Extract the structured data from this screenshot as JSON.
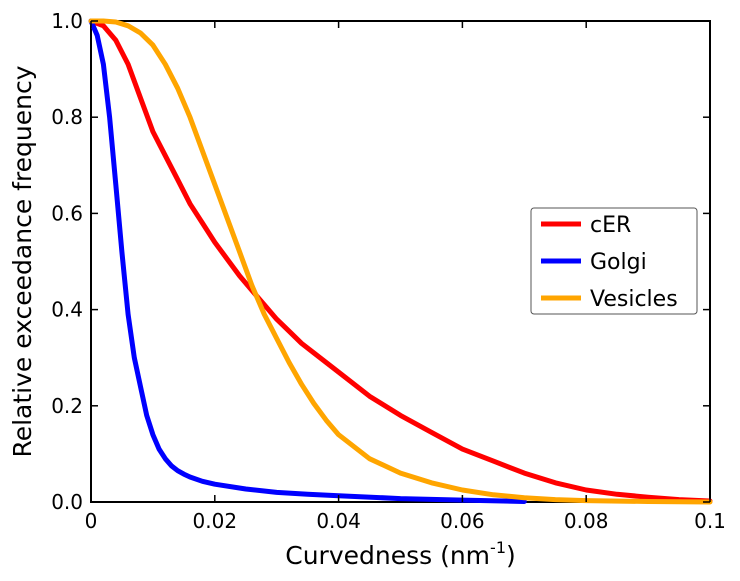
{
  "chart_data": {
    "type": "line",
    "title": "",
    "xlabel": "Curvedness (nm",
    "xlabel_sup": "-1",
    "xlabel_end": ")",
    "ylabel": "Relative exceedance frequency",
    "xlim": [
      0,
      0.1
    ],
    "ylim": [
      0,
      1.0
    ],
    "xticks": [
      "0",
      "0.02",
      "0.04",
      "0.06",
      "0.08",
      "0.1"
    ],
    "xtick_values": [
      0,
      0.02,
      0.04,
      0.06,
      0.08,
      0.1
    ],
    "yticks": [
      "0.0",
      "0.2",
      "0.4",
      "0.6",
      "0.8",
      "1.0"
    ],
    "ytick_values": [
      0,
      0.2,
      0.4,
      0.6,
      0.8,
      1.0
    ],
    "grid": false,
    "legend_position": "center-right",
    "series": [
      {
        "name": "cER",
        "color": "#ff0000",
        "x": [
          0,
          0.002,
          0.004,
          0.006,
          0.008,
          0.01,
          0.012,
          0.014,
          0.016,
          0.018,
          0.02,
          0.022,
          0.024,
          0.026,
          0.028,
          0.03,
          0.032,
          0.034,
          0.036,
          0.038,
          0.04,
          0.045,
          0.05,
          0.055,
          0.06,
          0.065,
          0.07,
          0.075,
          0.08,
          0.085,
          0.09,
          0.095,
          0.1
        ],
        "y": [
          1.0,
          0.99,
          0.96,
          0.91,
          0.84,
          0.77,
          0.72,
          0.67,
          0.62,
          0.58,
          0.54,
          0.505,
          0.47,
          0.44,
          0.41,
          0.38,
          0.355,
          0.33,
          0.31,
          0.29,
          0.27,
          0.22,
          0.18,
          0.145,
          0.11,
          0.085,
          0.06,
          0.04,
          0.025,
          0.016,
          0.01,
          0.005,
          0.002
        ]
      },
      {
        "name": "Golgi",
        "color": "#0000ff",
        "x": [
          0,
          0.001,
          0.002,
          0.003,
          0.004,
          0.005,
          0.006,
          0.007,
          0.008,
          0.009,
          0.01,
          0.011,
          0.012,
          0.013,
          0.014,
          0.015,
          0.016,
          0.018,
          0.02,
          0.025,
          0.03,
          0.035,
          0.04,
          0.05,
          0.06,
          0.07
        ],
        "y": [
          1.0,
          0.97,
          0.91,
          0.8,
          0.66,
          0.52,
          0.39,
          0.3,
          0.24,
          0.18,
          0.14,
          0.11,
          0.09,
          0.075,
          0.065,
          0.058,
          0.052,
          0.043,
          0.037,
          0.027,
          0.02,
          0.016,
          0.013,
          0.007,
          0.004,
          0.001
        ]
      },
      {
        "name": "Vesicles",
        "color": "#ffa500",
        "x": [
          0,
          0.002,
          0.004,
          0.006,
          0.008,
          0.01,
          0.012,
          0.014,
          0.016,
          0.018,
          0.02,
          0.022,
          0.024,
          0.026,
          0.028,
          0.03,
          0.032,
          0.034,
          0.036,
          0.038,
          0.04,
          0.045,
          0.05,
          0.055,
          0.06,
          0.065,
          0.07,
          0.075,
          0.08,
          0.09,
          0.1
        ],
        "y": [
          1.0,
          1.0,
          0.998,
          0.99,
          0.975,
          0.95,
          0.91,
          0.86,
          0.8,
          0.73,
          0.66,
          0.59,
          0.52,
          0.45,
          0.39,
          0.34,
          0.29,
          0.245,
          0.205,
          0.17,
          0.14,
          0.09,
          0.06,
          0.04,
          0.025,
          0.015,
          0.009,
          0.005,
          0.003,
          0.001,
          0.0
        ]
      }
    ]
  }
}
